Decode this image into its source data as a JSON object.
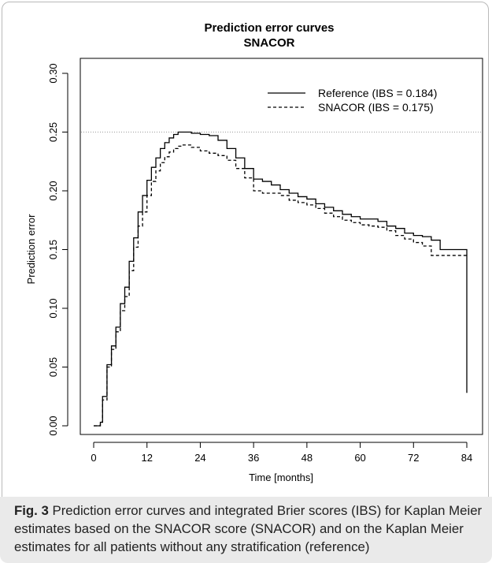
{
  "chart_data": {
    "type": "line",
    "title": "Prediction error curves",
    "subtitle": "SNACOR",
    "xlabel": "Time [months]",
    "ylabel": "Prediction error",
    "xlim": [
      0,
      84
    ],
    "ylim": [
      0,
      0.3
    ],
    "x_ticks": [
      0,
      12,
      24,
      36,
      48,
      60,
      72,
      84
    ],
    "y_ticks": [
      "0.00",
      "0.05",
      "0.10",
      "0.15",
      "0.20",
      "0.25",
      "0.30"
    ],
    "reference_line": 0.25,
    "grid": false,
    "legend_position": "top-right",
    "series": [
      {
        "name": "Reference (IBS = 0.184)",
        "style": "solid",
        "color": "#000000",
        "x": [
          0,
          1.5,
          2,
          3,
          4,
          5,
          6,
          7,
          8,
          9,
          10,
          11,
          12,
          13,
          14,
          15,
          16,
          17,
          18,
          19,
          20,
          21,
          22,
          24,
          26,
          28,
          30,
          32,
          34,
          36,
          38,
          40,
          42,
          44,
          46,
          48,
          50,
          52,
          54,
          56,
          58,
          60,
          62,
          64,
          66,
          68,
          70,
          72,
          74,
          76,
          78,
          80,
          82,
          84,
          84
        ],
        "y": [
          0,
          0.003,
          0.025,
          0.052,
          0.068,
          0.084,
          0.104,
          0.118,
          0.14,
          0.16,
          0.182,
          0.196,
          0.209,
          0.22,
          0.228,
          0.236,
          0.241,
          0.245,
          0.248,
          0.25,
          0.25,
          0.25,
          0.249,
          0.248,
          0.247,
          0.243,
          0.236,
          0.228,
          0.219,
          0.21,
          0.208,
          0.205,
          0.201,
          0.198,
          0.195,
          0.193,
          0.189,
          0.186,
          0.183,
          0.18,
          0.178,
          0.176,
          0.176,
          0.174,
          0.17,
          0.168,
          0.164,
          0.162,
          0.161,
          0.158,
          0.15,
          0.15,
          0.15,
          0.15,
          0.028
        ]
      },
      {
        "name": "SNACOR (IBS = 0.175)",
        "style": "dashed",
        "color": "#000000",
        "x": [
          0,
          1.5,
          2,
          3,
          4,
          5,
          6,
          7,
          8,
          9,
          10,
          11,
          12,
          13,
          14,
          15,
          16,
          17,
          18,
          19,
          20,
          21,
          22,
          24,
          26,
          28,
          30,
          32,
          34,
          36,
          38,
          40,
          42,
          44,
          46,
          48,
          50,
          52,
          54,
          56,
          58,
          60,
          62,
          64,
          66,
          68,
          70,
          72,
          74,
          76,
          78,
          80,
          82,
          84
        ],
        "y": [
          0,
          0.003,
          0.022,
          0.05,
          0.065,
          0.08,
          0.098,
          0.11,
          0.132,
          0.152,
          0.17,
          0.182,
          0.196,
          0.208,
          0.217,
          0.224,
          0.229,
          0.233,
          0.236,
          0.238,
          0.239,
          0.239,
          0.237,
          0.234,
          0.232,
          0.23,
          0.226,
          0.219,
          0.211,
          0.2,
          0.198,
          0.198,
          0.196,
          0.192,
          0.19,
          0.188,
          0.185,
          0.181,
          0.178,
          0.175,
          0.173,
          0.171,
          0.17,
          0.169,
          0.166,
          0.162,
          0.159,
          0.156,
          0.153,
          0.145,
          0.145,
          0.145,
          0.145,
          0.144
        ]
      }
    ]
  },
  "caption": {
    "label": "Fig. 3",
    "text": "Prediction error curves and integrated Brier scores (IBS) for Kaplan Meier estimates based on the SNACOR score (SNACOR) and on the Kaplan Meier estimates for all patients without any stratification (reference)"
  }
}
